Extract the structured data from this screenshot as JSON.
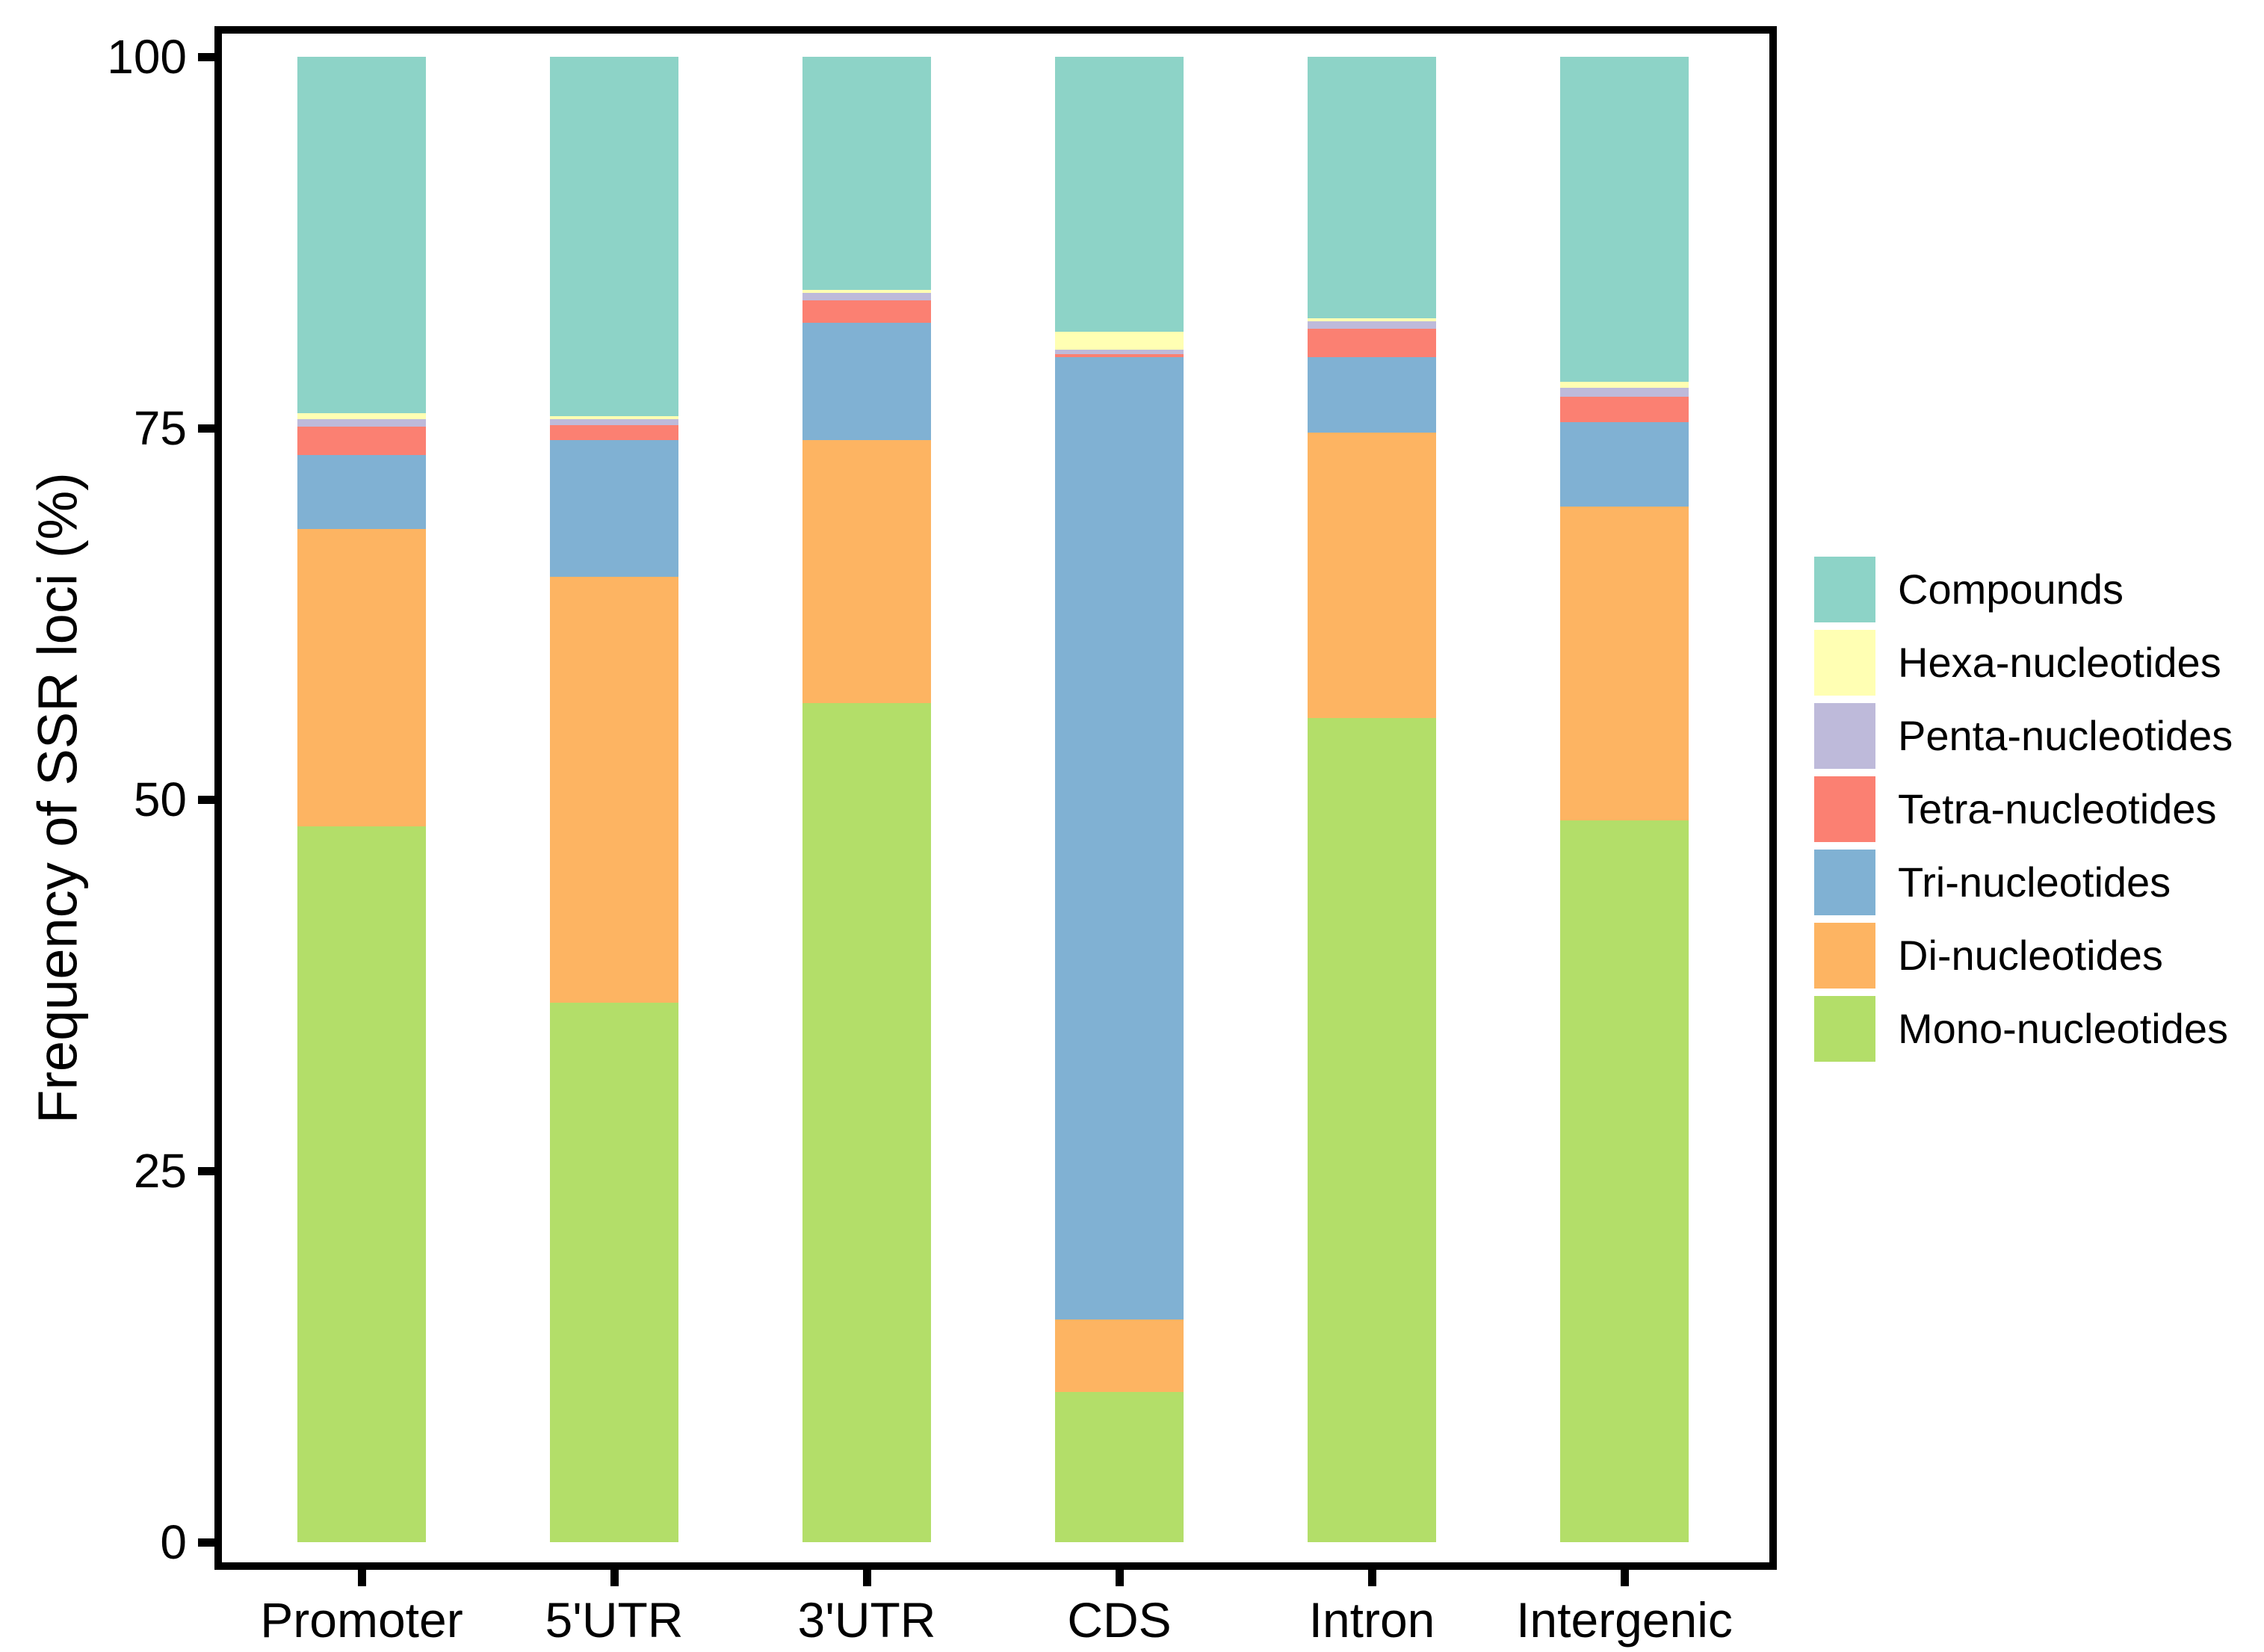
{
  "style": {
    "background": "#FFFFFF",
    "frame_color": "#000000",
    "text_color": "#000000"
  },
  "chart_data": {
    "type": "bar",
    "stacked": true,
    "title": "",
    "xlabel": "",
    "ylabel": "Frequency of SSR loci (%)",
    "ylim": [
      0,
      100
    ],
    "yticks": [
      0,
      25,
      50,
      75,
      100
    ],
    "grid": false,
    "legend_position": "right",
    "categories": [
      "Promoter",
      "5'UTR",
      "3'UTR",
      "CDS",
      "Intron",
      "Intergenic"
    ],
    "series": [
      {
        "name": "Mono-nucleotides",
        "color": "#B3DE69",
        "values": [
          48.2,
          36.3,
          56.5,
          10.1,
          55.5,
          48.6
        ]
      },
      {
        "name": "Di-nucleotides",
        "color": "#FDB462",
        "values": [
          20.0,
          28.7,
          17.7,
          4.9,
          19.2,
          21.1
        ]
      },
      {
        "name": "Tri-nucleotides",
        "color": "#80B1D3",
        "values": [
          5.0,
          9.2,
          7.9,
          64.8,
          5.1,
          5.7
        ]
      },
      {
        "name": "Tetra-nucleotides",
        "color": "#FB8072",
        "values": [
          1.9,
          1.0,
          1.5,
          0.2,
          1.9,
          1.7
        ]
      },
      {
        "name": "Penta-nucleotides",
        "color": "#BEBADA",
        "values": [
          0.5,
          0.4,
          0.5,
          0.3,
          0.5,
          0.6
        ]
      },
      {
        "name": "Hexa-nucleotides",
        "color": "#FFFFB3",
        "values": [
          0.4,
          0.2,
          0.2,
          1.2,
          0.2,
          0.4
        ]
      },
      {
        "name": "Compounds",
        "color": "#8DD3C7",
        "values": [
          24.0,
          24.2,
          15.7,
          18.5,
          17.6,
          21.9
        ]
      }
    ],
    "legend_order_top_to_bottom": [
      "Compounds",
      "Hexa-nucleotides",
      "Penta-nucleotides",
      "Tetra-nucleotides",
      "Tri-nucleotides",
      "Di-nucleotides",
      "Mono-nucleotides"
    ]
  }
}
